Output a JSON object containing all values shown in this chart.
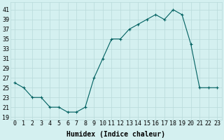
{
  "x": [
    0,
    1,
    2,
    3,
    4,
    5,
    6,
    7,
    8,
    9,
    10,
    11,
    12,
    13,
    14,
    15,
    16,
    17,
    18,
    19,
    20,
    21,
    22,
    23
  ],
  "y": [
    26,
    25,
    23,
    23,
    21,
    21,
    20,
    20,
    21,
    27,
    31,
    35,
    35,
    37,
    38,
    39,
    40,
    39,
    41,
    40,
    34,
    25,
    25,
    25
  ],
  "line_color": "#006060",
  "marker": "+",
  "marker_size": 3,
  "marker_linewidth": 0.8,
  "bg_color": "#d4f0f0",
  "grid_color": "#b8dada",
  "xlabel": "Humidex (Indice chaleur)",
  "xlabel_fontsize": 7,
  "ylabel_ticks": [
    19,
    21,
    23,
    25,
    27,
    29,
    31,
    33,
    35,
    37,
    39,
    41
  ],
  "xlim": [
    -0.5,
    23.5
  ],
  "ylim": [
    18.5,
    42.5
  ],
  "tick_fontsize": 6
}
